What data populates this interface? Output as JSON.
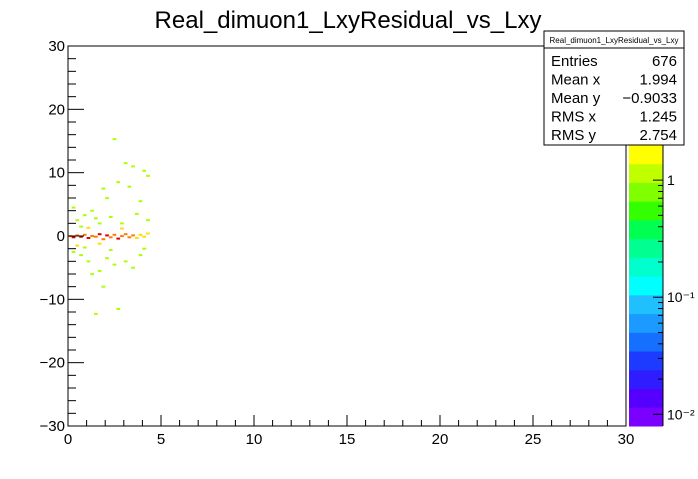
{
  "chart_data": {
    "type": "heatmap",
    "title": "Real_dimuon1_LxyResidual_vs_Lxy",
    "xlabel": "",
    "ylabel": "",
    "xlim": [
      0,
      30
    ],
    "ylim": [
      -30,
      30
    ],
    "x_ticks": [
      "0",
      "5",
      "10",
      "15",
      "20",
      "25",
      "30"
    ],
    "y_ticks": [
      "−30",
      "−20",
      "−10",
      "0",
      "10",
      "20",
      "30"
    ],
    "z_scale": "log",
    "z_ticks": [
      "1",
      "10⁻¹",
      "10⁻²"
    ],
    "bins": [
      {
        "x": 0.1,
        "y": 0.0,
        "z": 3
      },
      {
        "x": 0.3,
        "y": -0.2,
        "z": 4
      },
      {
        "x": 0.5,
        "y": 0.1,
        "z": 3
      },
      {
        "x": 0.7,
        "y": -0.1,
        "z": 4
      },
      {
        "x": 0.9,
        "y": 0.2,
        "z": 3
      },
      {
        "x": 1.1,
        "y": -0.3,
        "z": 4
      },
      {
        "x": 1.3,
        "y": 0.0,
        "z": 3
      },
      {
        "x": 1.5,
        "y": -0.1,
        "z": 3
      },
      {
        "x": 1.7,
        "y": 0.3,
        "z": 4
      },
      {
        "x": 1.9,
        "y": -0.5,
        "z": 3
      },
      {
        "x": 2.1,
        "y": 0.1,
        "z": 4
      },
      {
        "x": 2.3,
        "y": -0.2,
        "z": 3
      },
      {
        "x": 2.5,
        "y": 0.2,
        "z": 3
      },
      {
        "x": 2.7,
        "y": -0.4,
        "z": 4
      },
      {
        "x": 2.9,
        "y": 0.0,
        "z": 3
      },
      {
        "x": 3.1,
        "y": 0.3,
        "z": 3
      },
      {
        "x": 3.3,
        "y": -0.2,
        "z": 3
      },
      {
        "x": 3.5,
        "y": 0.1,
        "z": 3
      },
      {
        "x": 3.7,
        "y": -0.3,
        "z": 2
      },
      {
        "x": 3.9,
        "y": 0.2,
        "z": 2
      },
      {
        "x": 4.1,
        "y": -0.1,
        "z": 2
      },
      {
        "x": 4.3,
        "y": 0.4,
        "z": 2
      },
      {
        "x": 0.3,
        "y": 4.5,
        "z": 1
      },
      {
        "x": 0.5,
        "y": 2.5,
        "z": 1
      },
      {
        "x": 0.9,
        "y": 3.3,
        "z": 1
      },
      {
        "x": 1.3,
        "y": 4.0,
        "z": 1
      },
      {
        "x": 1.7,
        "y": 2.0,
        "z": 1
      },
      {
        "x": 1.9,
        "y": 7.5,
        "z": 1
      },
      {
        "x": 2.1,
        "y": 6.0,
        "z": 1
      },
      {
        "x": 2.5,
        "y": 15.3,
        "z": 1
      },
      {
        "x": 2.7,
        "y": 8.5,
        "z": 1
      },
      {
        "x": 3.1,
        "y": 11.5,
        "z": 1
      },
      {
        "x": 3.3,
        "y": 7.8,
        "z": 1
      },
      {
        "x": 3.5,
        "y": 11.0,
        "z": 1
      },
      {
        "x": 3.9,
        "y": 5.5,
        "z": 1
      },
      {
        "x": 4.1,
        "y": 10.3,
        "z": 1
      },
      {
        "x": 4.3,
        "y": 9.5,
        "z": 1
      },
      {
        "x": 0.7,
        "y": 1.5,
        "z": 1
      },
      {
        "x": 1.5,
        "y": 2.8,
        "z": 1
      },
      {
        "x": 2.3,
        "y": 3.0,
        "z": 1
      },
      {
        "x": 2.9,
        "y": 2.0,
        "z": 1
      },
      {
        "x": 3.7,
        "y": 3.5,
        "z": 1
      },
      {
        "x": 4.3,
        "y": 2.5,
        "z": 1
      },
      {
        "x": 0.3,
        "y": -2.5,
        "z": 1
      },
      {
        "x": 0.7,
        "y": -3.0,
        "z": 1
      },
      {
        "x": 1.1,
        "y": -4.0,
        "z": 1
      },
      {
        "x": 1.3,
        "y": -6.0,
        "z": 1
      },
      {
        "x": 1.7,
        "y": -5.5,
        "z": 1
      },
      {
        "x": 1.5,
        "y": -12.3,
        "z": 1
      },
      {
        "x": 2.1,
        "y": -3.5,
        "z": 1
      },
      {
        "x": 2.5,
        "y": -4.5,
        "z": 1
      },
      {
        "x": 2.7,
        "y": -11.5,
        "z": 1
      },
      {
        "x": 3.1,
        "y": -4.0,
        "z": 1
      },
      {
        "x": 3.5,
        "y": -5.0,
        "z": 1
      },
      {
        "x": 3.9,
        "y": -3.0,
        "z": 1
      },
      {
        "x": 1.9,
        "y": -8.0,
        "z": 1
      },
      {
        "x": 0.9,
        "y": -1.8,
        "z": 1
      },
      {
        "x": 2.3,
        "y": -2.2,
        "z": 1
      },
      {
        "x": 4.1,
        "y": -2.0,
        "z": 1
      },
      {
        "x": 0.5,
        "y": -1.5,
        "z": 2
      },
      {
        "x": 1.7,
        "y": -1.2,
        "z": 2
      },
      {
        "x": 2.9,
        "y": 1.2,
        "z": 2
      },
      {
        "x": 1.1,
        "y": 1.3,
        "z": 2
      }
    ],
    "stats": {
      "title": "Real_dimuon1_LxyResidual_vs_Lxy",
      "rows": [
        {
          "label": "Entries",
          "value": "676"
        },
        {
          "label": "Mean x",
          "value": "1.994"
        },
        {
          "label": "Mean y",
          "value": "−0.9033"
        },
        {
          "label": "RMS x",
          "value": "1.245"
        },
        {
          "label": "RMS y",
          "value": "2.754"
        }
      ]
    },
    "palette": [
      "#7a00ff",
      "#5500ff",
      "#2f1dff",
      "#1d3bff",
      "#1670ff",
      "#1b9bff",
      "#20c0ff",
      "#00ffff",
      "#00ffcc",
      "#00ff90",
      "#00ff50",
      "#33ff00",
      "#80ff00",
      "#c0ff00",
      "#ffff00"
    ],
    "level_colors": {
      "1": "#aaff00",
      "2": "#ffdd00",
      "3": "#ff7a00",
      "4": "#e00000"
    }
  }
}
